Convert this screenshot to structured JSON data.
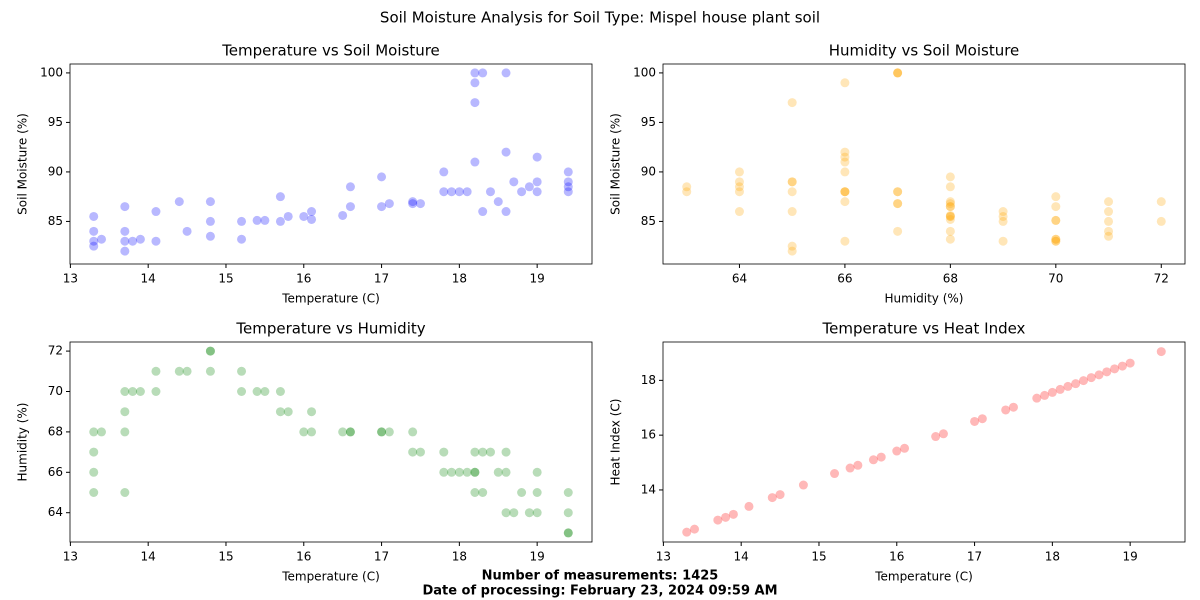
{
  "title": "Soil Moisture Analysis for Soil Type: Mispel house plant soil",
  "footer": [
    "Number of measurements: 1425",
    "Date of processing: February 23, 2024 09:59 AM"
  ],
  "chart_data": [
    {
      "type": "scatter",
      "title": "Temperature vs Soil Moisture",
      "x_label": "Temperature (C)",
      "y_label": "Soil Moisture (%)",
      "color": "blue",
      "alpha": 0.28,
      "x": [
        13.3,
        13.3,
        13.3,
        13.3,
        13.4,
        13.7,
        13.7,
        13.7,
        13.7,
        13.8,
        13.9,
        14.1,
        14.1,
        14.4,
        14.5,
        14.8,
        14.8,
        14.8,
        15.2,
        15.2,
        15.4,
        15.5,
        15.7,
        15.7,
        15.8,
        16.0,
        16.1,
        16.1,
        16.5,
        16.6,
        16.6,
        17.0,
        17.0,
        17.1,
        17.4,
        17.4,
        17.5,
        17.8,
        17.8,
        17.9,
        18.0,
        18.1,
        18.2,
        18.2,
        18.2,
        18.2,
        18.3,
        18.3,
        18.4,
        18.5,
        18.6,
        18.6,
        18.6,
        18.7,
        18.8,
        18.9,
        19.0,
        19.0,
        19.0,
        19.4,
        19.4,
        19.4,
        19.4
      ],
      "y": [
        82.5,
        83,
        84,
        85.5,
        83.2,
        82,
        83,
        86.5,
        84,
        83,
        83.2,
        86,
        83,
        87,
        84,
        85,
        83.5,
        87,
        85,
        83.2,
        85.1,
        85.1,
        87.5,
        85,
        85.5,
        85.5,
        86,
        85.2,
        85.6,
        86.5,
        88.5,
        86.5,
        89.5,
        86.8,
        87,
        86.8,
        86.8,
        88,
        90,
        88,
        88,
        88,
        100,
        99,
        97,
        91,
        100,
        86,
        88,
        87,
        100,
        86,
        92,
        89,
        88,
        88.5,
        91.5,
        88,
        89,
        88,
        90,
        89,
        88.5
      ],
      "xlim": [
        12.995,
        19.705
      ],
      "ylim": [
        80.7,
        100.9
      ],
      "xticks": [
        13,
        14,
        15,
        16,
        17,
        18,
        19
      ],
      "yticks": [
        85,
        90,
        95,
        100
      ]
    },
    {
      "type": "scatter",
      "title": "Humidity vs Soil Moisture",
      "x_label": "Humidity (%)",
      "y_label": "Soil Moisture (%)",
      "color": "orange",
      "alpha": 0.28,
      "x": [
        65,
        66,
        67,
        68,
        68,
        65,
        69,
        70,
        68,
        70,
        70,
        71,
        70,
        71,
        71,
        72,
        71,
        72,
        71,
        70,
        70,
        70,
        70,
        69,
        69,
        68,
        69,
        68,
        68,
        68,
        68,
        68,
        68,
        68,
        68,
        67,
        67,
        67,
        66,
        66,
        66,
        66,
        67,
        66,
        65,
        66,
        67,
        65,
        67,
        66,
        67,
        64,
        66,
        64,
        65,
        64,
        66,
        64,
        65,
        63,
        64,
        65,
        63
      ],
      "y": [
        82.5,
        83,
        84,
        85.5,
        83.2,
        82,
        83,
        86.5,
        84,
        83,
        83.2,
        86,
        83,
        87,
        84,
        85,
        83.5,
        87,
        85,
        83.2,
        85.1,
        85.1,
        87.5,
        85,
        85.5,
        85.5,
        86,
        85.2,
        85.6,
        86.5,
        88.5,
        86.5,
        89.5,
        86.8,
        87,
        86.8,
        86.8,
        88,
        90,
        88,
        88,
        88,
        100,
        99,
        97,
        91,
        100,
        86,
        88,
        87,
        100,
        86,
        92,
        89,
        88,
        88.5,
        91.5,
        88,
        89,
        88,
        90,
        89,
        88.5
      ],
      "xlim": [
        62.55,
        72.45
      ],
      "ylim": [
        80.7,
        100.9
      ],
      "xticks": [
        64,
        66,
        68,
        70,
        72
      ],
      "yticks": [
        85,
        90,
        95,
        100
      ]
    },
    {
      "type": "scatter",
      "title": "Temperature vs Humidity",
      "x_label": "Temperature (C)",
      "y_label": "Humidity (%)",
      "color": "green",
      "alpha": 0.28,
      "x": [
        13.3,
        13.3,
        13.3,
        13.3,
        13.4,
        13.7,
        13.7,
        13.7,
        13.7,
        13.8,
        13.9,
        14.1,
        14.1,
        14.4,
        14.5,
        14.8,
        14.8,
        14.8,
        15.2,
        15.2,
        15.4,
        15.5,
        15.7,
        15.7,
        15.8,
        16.0,
        16.1,
        16.1,
        16.5,
        16.6,
        16.6,
        17.0,
        17.0,
        17.1,
        17.4,
        17.4,
        17.5,
        17.8,
        17.8,
        17.9,
        18.0,
        18.1,
        18.2,
        18.2,
        18.2,
        18.2,
        18.3,
        18.3,
        18.4,
        18.5,
        18.6,
        18.6,
        18.6,
        18.7,
        18.8,
        18.9,
        19.0,
        19.0,
        19.0,
        19.4,
        19.4,
        19.4,
        19.4
      ],
      "y": [
        65,
        66,
        67,
        68,
        68,
        65,
        69,
        70,
        68,
        70,
        70,
        71,
        70,
        71,
        71,
        72,
        71,
        72,
        71,
        70,
        70,
        70,
        70,
        69,
        69,
        68,
        69,
        68,
        68,
        68,
        68,
        68,
        68,
        68,
        68,
        67,
        67,
        67,
        66,
        66,
        66,
        66,
        67,
        66,
        65,
        66,
        67,
        65,
        67,
        66,
        67,
        64,
        66,
        64,
        65,
        64,
        66,
        64,
        65,
        63,
        64,
        65,
        63
      ],
      "xlim": [
        12.995,
        19.705
      ],
      "ylim": [
        62.55,
        72.45
      ],
      "xticks": [
        13,
        14,
        15,
        16,
        17,
        18,
        19
      ],
      "yticks": [
        64,
        66,
        68,
        70,
        72
      ]
    },
    {
      "type": "scatter",
      "title": "Temperature vs Heat Index",
      "x_label": "Temperature (C)",
      "y_label": "Heat Index (C)",
      "color": "red",
      "alpha": 0.28,
      "x": [
        13.3,
        13.4,
        13.7,
        13.8,
        13.9,
        14.1,
        14.4,
        14.5,
        14.8,
        15.2,
        15.4,
        15.5,
        15.7,
        15.8,
        16.0,
        16.1,
        16.5,
        16.6,
        17.0,
        17.1,
        17.4,
        17.5,
        17.8,
        17.9,
        18.0,
        18.1,
        18.2,
        18.3,
        18.4,
        18.5,
        18.6,
        18.7,
        18.8,
        18.9,
        19.0,
        19.4
      ],
      "y": [
        12.46,
        12.57,
        12.9,
        13.0,
        13.11,
        13.4,
        13.72,
        13.83,
        14.18,
        14.6,
        14.8,
        14.9,
        15.1,
        15.2,
        15.42,
        15.52,
        15.95,
        16.05,
        16.5,
        16.6,
        16.92,
        17.02,
        17.35,
        17.45,
        17.56,
        17.67,
        17.78,
        17.88,
        17.99,
        18.1,
        18.2,
        18.31,
        18.42,
        18.52,
        18.63,
        19.05
      ],
      "xlim": [
        12.995,
        19.705
      ],
      "ylim": [
        12.1,
        19.4
      ],
      "xticks": [
        13,
        14,
        15,
        16,
        17,
        18,
        19
      ],
      "yticks": [
        14,
        16,
        18
      ]
    }
  ]
}
